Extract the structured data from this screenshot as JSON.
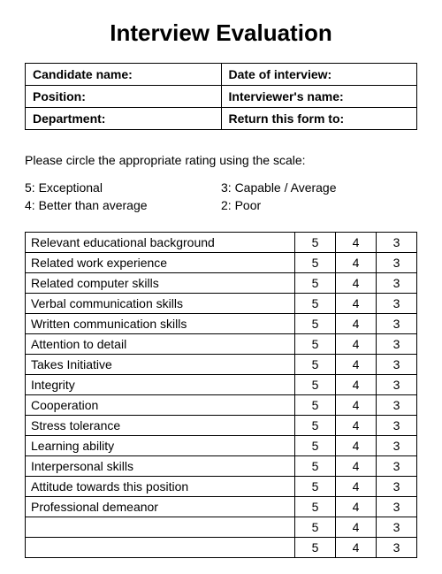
{
  "title": "Interview Evaluation",
  "header": {
    "candidate_name": "Candidate name:",
    "date_of_interview": "Date of interview:",
    "position": "Position:",
    "interviewer_name": "Interviewer's name:",
    "department": "Department:",
    "return_to": "Return this form to:"
  },
  "instruction": "Please circle the appropriate rating using the scale:",
  "scale": {
    "s5": "5: Exceptional",
    "s4": "4: Better than average",
    "s3": "3: Capable / Average",
    "s2": "2: Poor"
  },
  "rating_columns": [
    "5",
    "4",
    "3"
  ],
  "criteria": [
    "Relevant educational background",
    "Related work experience",
    "Related computer skills",
    "Verbal communication skills",
    "Written communication skills",
    "Attention to detail",
    "Takes Initiative",
    "Integrity",
    "Cooperation",
    "Stress tolerance",
    "Learning ability",
    "Interpersonal skills",
    "Attitude towards this position",
    "Professional demeanor",
    "",
    ""
  ],
  "colors": {
    "text": "#000000",
    "background": "#ffffff",
    "border": "#000000"
  },
  "typography": {
    "title_fontsize": 26,
    "body_fontsize": 14,
    "font_family": "Arial"
  }
}
